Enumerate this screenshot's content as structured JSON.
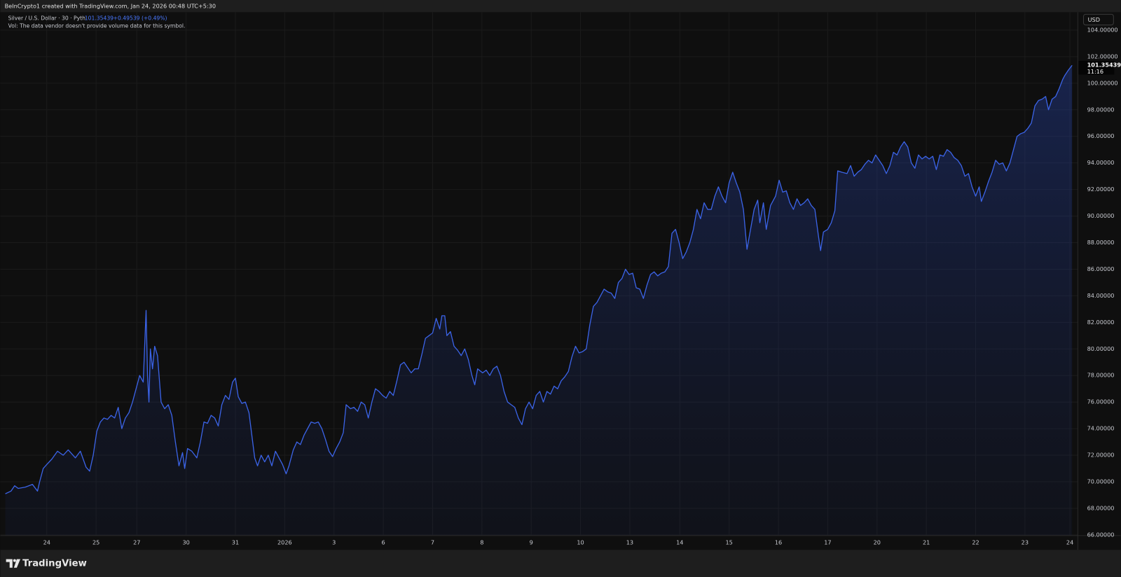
{
  "chart_data": {
    "type": "line",
    "header": "BeInCrypto1 created with TradingView.com, Jan 24, 2026 00:48 UTC+5:30",
    "title": "Silver / U.S. Dollar · 30 · Pyth",
    "legend_quote": "101.35439",
    "legend_change": "+0.49539 (+0.49%)",
    "volume_note": "Vol: The data vendor doesn't provide volume data for this symbol.",
    "currency": "USD",
    "last_price": 101.35439,
    "last_time": "11:16",
    "brand": "TradingView",
    "grid": true,
    "xlim": [
      7,
      1506
    ],
    "ylim": [
      65.95,
      105.35
    ],
    "xticks": [
      {
        "value": 65,
        "label": "24"
      },
      {
        "value": 134,
        "label": "25"
      },
      {
        "value": 191,
        "label": "27"
      },
      {
        "value": 260,
        "label": "30"
      },
      {
        "value": 329,
        "label": "31"
      },
      {
        "value": 398,
        "label": "2026"
      },
      {
        "value": 467,
        "label": "3"
      },
      {
        "value": 536,
        "label": "6"
      },
      {
        "value": 605,
        "label": "7"
      },
      {
        "value": 674,
        "label": "8"
      },
      {
        "value": 743,
        "label": "9"
      },
      {
        "value": 812,
        "label": "10"
      },
      {
        "value": 881,
        "label": "13"
      },
      {
        "value": 951,
        "label": "14"
      },
      {
        "value": 1020,
        "label": "15"
      },
      {
        "value": 1089,
        "label": "16"
      },
      {
        "value": 1158,
        "label": "17"
      },
      {
        "value": 1227,
        "label": "20"
      },
      {
        "value": 1296,
        "label": "21"
      },
      {
        "value": 1365,
        "label": "22"
      },
      {
        "value": 1434,
        "label": "23"
      },
      {
        "value": 1497,
        "label": "24"
      }
    ],
    "yticks": [
      {
        "value": 66,
        "label": "66.00000"
      },
      {
        "value": 68,
        "label": "68.00000"
      },
      {
        "value": 70,
        "label": "70.00000"
      },
      {
        "value": 72,
        "label": "72.00000"
      },
      {
        "value": 74,
        "label": "74.00000"
      },
      {
        "value": 76,
        "label": "76.00000"
      },
      {
        "value": 78,
        "label": "78.00000"
      },
      {
        "value": 80,
        "label": "80.00000"
      },
      {
        "value": 82,
        "label": "82.00000"
      },
      {
        "value": 84,
        "label": "84.00000"
      },
      {
        "value": 86,
        "label": "86.00000"
      },
      {
        "value": 88,
        "label": "88.00000"
      },
      {
        "value": 90,
        "label": "90.00000"
      },
      {
        "value": 92,
        "label": "92.00000"
      },
      {
        "value": 94,
        "label": "94.00000"
      },
      {
        "value": 96,
        "label": "96.00000"
      },
      {
        "value": 98,
        "label": "98.00000"
      },
      {
        "value": 100,
        "label": "100.00000"
      },
      {
        "value": 102,
        "label": "102.00000"
      },
      {
        "value": 104,
        "label": "104.00000"
      }
    ],
    "x": [
      7,
      15,
      20,
      25,
      35,
      45,
      52,
      55,
      60,
      65,
      72,
      80,
      88,
      95,
      105,
      112,
      120,
      125,
      130,
      135,
      140,
      145,
      150,
      155,
      160,
      165,
      170,
      175,
      180,
      185,
      190,
      195,
      200,
      204,
      206,
      208,
      210,
      213,
      216,
      220,
      225,
      230,
      235,
      240,
      245,
      250,
      255,
      258,
      262,
      268,
      275,
      280,
      285,
      290,
      295,
      300,
      305,
      310,
      315,
      320,
      325,
      329,
      333,
      338,
      343,
      348,
      352,
      356,
      360,
      365,
      370,
      375,
      380,
      385,
      390,
      395,
      400,
      404,
      410,
      415,
      420,
      425,
      430,
      435,
      440,
      445,
      450,
      455,
      460,
      465,
      470,
      475,
      480,
      484,
      490,
      495,
      500,
      505,
      510,
      515,
      520,
      525,
      530,
      535,
      540,
      545,
      550,
      555,
      560,
      565,
      570,
      575,
      580,
      585,
      590,
      595,
      600,
      605,
      610,
      615,
      618,
      622,
      625,
      630,
      635,
      640,
      645,
      650,
      655,
      660,
      664,
      668,
      675,
      680,
      685,
      690,
      695,
      700,
      705,
      710,
      715,
      720,
      725,
      730,
      735,
      740,
      745,
      750,
      755,
      760,
      765,
      770,
      775,
      780,
      785,
      790,
      795,
      800,
      805,
      810,
      815,
      820,
      825,
      830,
      835,
      840,
      845,
      850,
      855,
      860,
      865,
      870,
      875,
      880,
      885,
      890,
      895,
      900,
      905,
      910,
      915,
      920,
      925,
      930,
      935,
      940,
      945,
      950,
      955,
      960,
      965,
      970,
      975,
      980,
      985,
      990,
      995,
      1000,
      1005,
      1010,
      1015,
      1020,
      1025,
      1030,
      1035,
      1040,
      1045,
      1050,
      1055,
      1060,
      1063,
      1068,
      1072,
      1078,
      1085,
      1090,
      1095,
      1100,
      1105,
      1110,
      1115,
      1120,
      1125,
      1130,
      1135,
      1140,
      1145,
      1148,
      1152,
      1158,
      1163,
      1168,
      1172,
      1178,
      1185,
      1190,
      1195,
      1200,
      1205,
      1210,
      1215,
      1220,
      1225,
      1230,
      1235,
      1240,
      1245,
      1250,
      1255,
      1260,
      1265,
      1270,
      1275,
      1280,
      1285,
      1290,
      1295,
      1300,
      1305,
      1310,
      1315,
      1320,
      1325,
      1330,
      1335,
      1340,
      1345,
      1350,
      1355,
      1360,
      1365,
      1370,
      1373,
      1378,
      1383,
      1388,
      1393,
      1398,
      1403,
      1408,
      1413,
      1418,
      1423,
      1428,
      1433,
      1438,
      1443,
      1448,
      1453,
      1458,
      1463,
      1467,
      1472,
      1477,
      1482,
      1487,
      1490,
      1495,
      1500
    ],
    "series": [
      {
        "color": "#3b63e6",
        "values": [
          69.1,
          69.3,
          69.7,
          69.5,
          69.6,
          69.8,
          69.3,
          70.0,
          71.0,
          71.3,
          71.7,
          72.3,
          72.0,
          72.4,
          71.8,
          72.3,
          71.1,
          70.8,
          72.0,
          73.8,
          74.5,
          74.8,
          74.7,
          75.0,
          74.8,
          75.6,
          74.0,
          74.8,
          75.2,
          76.0,
          77.0,
          78.0,
          77.5,
          82.9,
          78.0,
          76.0,
          80.0,
          78.5,
          80.2,
          79.5,
          76.0,
          75.5,
          75.8,
          75.0,
          73.0,
          71.2,
          72.2,
          71.0,
          72.5,
          72.3,
          71.8,
          73.0,
          74.5,
          74.4,
          75.0,
          74.8,
          74.2,
          75.8,
          76.5,
          76.2,
          77.5,
          77.8,
          76.4,
          75.9,
          76.0,
          75.2,
          73.5,
          71.8,
          71.2,
          72.0,
          71.5,
          72.0,
          71.2,
          72.3,
          71.8,
          71.3,
          70.6,
          71.2,
          72.4,
          73.0,
          72.8,
          73.5,
          74.0,
          74.5,
          74.4,
          74.5,
          74.0,
          73.2,
          72.3,
          71.9,
          72.5,
          73.0,
          73.7,
          75.8,
          75.5,
          75.6,
          75.3,
          76.0,
          75.8,
          74.8,
          76.0,
          77.0,
          76.8,
          76.5,
          76.3,
          76.8,
          76.5,
          77.6,
          78.8,
          79.0,
          78.6,
          78.2,
          78.5,
          78.5,
          79.6,
          80.8,
          81.0,
          81.2,
          82.3,
          81.5,
          82.5,
          82.5,
          81.0,
          81.3,
          80.2,
          79.9,
          79.5,
          80.0,
          79.2,
          78.0,
          77.3,
          78.5,
          78.2,
          78.4,
          78.0,
          78.5,
          78.7,
          78.0,
          76.8,
          76.0,
          75.8,
          75.6,
          74.8,
          74.3,
          75.5,
          76.0,
          75.5,
          76.5,
          76.8,
          76.0,
          76.8,
          76.6,
          77.2,
          77.0,
          77.6,
          77.9,
          78.3,
          79.4,
          80.2,
          79.7,
          79.8,
          80.0,
          81.8,
          83.2,
          83.5,
          84.0,
          84.5,
          84.3,
          84.2,
          83.8,
          85.0,
          85.3,
          86.0,
          85.6,
          85.7,
          84.6,
          84.5,
          83.8,
          84.8,
          85.6,
          85.8,
          85.5,
          85.7,
          85.8,
          86.2,
          88.7,
          89.0,
          88.0,
          86.8,
          87.3,
          88.0,
          89.0,
          90.5,
          89.8,
          91.0,
          90.5,
          90.5,
          91.5,
          92.2,
          91.5,
          91.0,
          92.5,
          93.3,
          92.5,
          91.8,
          90.5,
          87.5,
          89.0,
          90.5,
          91.2,
          89.5,
          91.0,
          89.0,
          90.8,
          91.5,
          92.7,
          91.8,
          91.9,
          91.0,
          90.5,
          91.3,
          90.8,
          91.0,
          91.3,
          90.8,
          90.5,
          88.5,
          87.4,
          88.8,
          89.0,
          89.5,
          90.4,
          93.4,
          93.3,
          93.2,
          93.8,
          93.0,
          93.3,
          93.5,
          93.9,
          94.2,
          94.0,
          94.6,
          94.2,
          93.8,
          93.2,
          93.8,
          94.8,
          94.6,
          95.2,
          95.6,
          95.2,
          94.0,
          93.6,
          94.6,
          94.3,
          94.5,
          94.3,
          94.5,
          93.5,
          94.6,
          94.5,
          95.0,
          94.8,
          94.4,
          94.2,
          93.8,
          93.0,
          93.2,
          92.2,
          91.5,
          92.2,
          91.1,
          91.8,
          92.6,
          93.3,
          94.2,
          93.9,
          94.0,
          93.4,
          94.0,
          95.0,
          96.0,
          96.2,
          96.3,
          96.6,
          97.0,
          98.3,
          98.7,
          98.8,
          99.0,
          98.0,
          98.8,
          99.0,
          99.6,
          100.3,
          100.6,
          101.0,
          101.35
        ]
      }
    ]
  }
}
